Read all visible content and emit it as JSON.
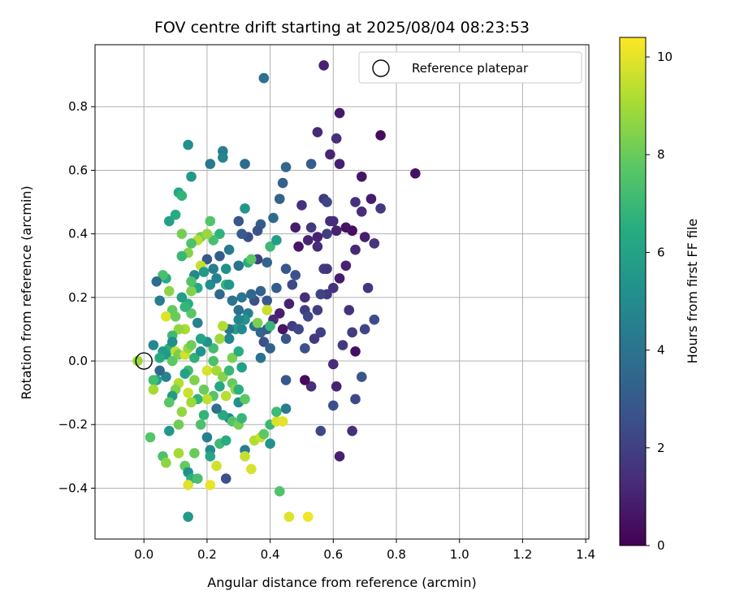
{
  "chart_data": {
    "type": "scatter",
    "title": "FOV centre drift starting at 2025/08/04 08:23:53",
    "xlabel": "Angular distance from reference (arcmin)",
    "ylabel": "Rotation from reference (arcmin)",
    "xlim": [
      -0.155,
      1.41
    ],
    "ylim": [
      -0.56,
      0.995
    ],
    "xticks": [
      "0.0",
      "0.2",
      "0.4",
      "0.6",
      "0.8",
      "1.0",
      "1.2",
      "1.4"
    ],
    "xtick_values": [
      0.0,
      0.2,
      0.4,
      0.6,
      0.8,
      1.0,
      1.2,
      1.4
    ],
    "yticks": [
      "−0.4",
      "−0.2",
      "0.0",
      "0.2",
      "0.4",
      "0.6",
      "0.8"
    ],
    "ytick_values": [
      -0.4,
      -0.2,
      0.0,
      0.2,
      0.4,
      0.6,
      0.8
    ],
    "grid": true,
    "legend": {
      "position": "upper-right",
      "entries": [
        "Reference platepar"
      ]
    },
    "reference_point": {
      "x": 0.0,
      "y": 0.0
    },
    "colorbar": {
      "label": "Hours from first FF file",
      "colormap": "viridis",
      "range": [
        0,
        10.4
      ],
      "ticks": [
        "0",
        "2",
        "4",
        "6",
        "8",
        "10"
      ],
      "tick_values": [
        0,
        2,
        4,
        6,
        8,
        10
      ]
    },
    "points": [
      [
        0.75,
        0.71,
        0.3
      ],
      [
        0.86,
        0.59,
        0.5
      ],
      [
        0.62,
        0.78,
        0.7
      ],
      [
        0.57,
        0.93,
        1.0
      ],
      [
        0.55,
        0.72,
        1.2
      ],
      [
        0.61,
        0.7,
        1.4
      ],
      [
        0.59,
        0.65,
        1.1
      ],
      [
        0.62,
        0.62,
        0.9
      ],
      [
        0.69,
        0.58,
        0.6
      ],
      [
        0.72,
        0.51,
        0.8
      ],
      [
        0.67,
        0.5,
        1.5
      ],
      [
        0.75,
        0.48,
        1.8
      ],
      [
        0.69,
        0.47,
        1.3
      ],
      [
        0.7,
        0.39,
        0.9
      ],
      [
        0.66,
        0.41,
        0.4
      ],
      [
        0.73,
        0.37,
        1.6
      ],
      [
        0.61,
        0.41,
        1.0
      ],
      [
        0.64,
        0.42,
        0.5
      ],
      [
        0.67,
        0.35,
        1.2
      ],
      [
        0.59,
        0.44,
        1.4
      ],
      [
        0.57,
        0.51,
        1.7
      ],
      [
        0.58,
        0.4,
        2.0
      ],
      [
        0.55,
        0.36,
        1.3
      ],
      [
        0.53,
        0.42,
        1.8
      ],
      [
        0.5,
        0.49,
        1.5
      ],
      [
        0.49,
        0.36,
        0.6
      ],
      [
        0.52,
        0.38,
        1.1
      ],
      [
        0.62,
        0.26,
        0.8
      ],
      [
        0.6,
        0.23,
        1.5
      ],
      [
        0.58,
        0.21,
        1.8
      ],
      [
        0.64,
        0.3,
        1.0
      ],
      [
        0.57,
        0.29,
        1.9
      ],
      [
        0.71,
        0.23,
        1.6
      ],
      [
        0.65,
        0.16,
        1.5
      ],
      [
        0.66,
        0.09,
        1.9
      ],
      [
        0.7,
        0.1,
        2.2
      ],
      [
        0.73,
        0.13,
        2.5
      ],
      [
        0.63,
        0.05,
        1.7
      ],
      [
        0.67,
        0.03,
        0.4
      ],
      [
        0.69,
        -0.05,
        2.8
      ],
      [
        0.6,
        -0.01,
        1.3
      ],
      [
        0.61,
        -0.08,
        1.0
      ],
      [
        0.67,
        -0.12,
        2.3
      ],
      [
        0.6,
        -0.14,
        2.5
      ],
      [
        0.66,
        -0.22,
        1.4
      ],
      [
        0.62,
        -0.3,
        0.9
      ],
      [
        0.56,
        -0.22,
        2.3
      ],
      [
        0.53,
        -0.08,
        1.4
      ],
      [
        0.51,
        -0.06,
        0.3
      ],
      [
        0.54,
        0.07,
        1.8
      ],
      [
        0.56,
        0.09,
        2.0
      ],
      [
        0.51,
        0.04,
        2.6
      ],
      [
        0.47,
        0.11,
        1.9
      ],
      [
        0.44,
        0.1,
        0.6
      ],
      [
        0.49,
        0.1,
        2.1
      ],
      [
        0.51,
        0.16,
        1.9
      ],
      [
        0.46,
        0.18,
        1.0
      ],
      [
        0.43,
        0.15,
        0.9
      ],
      [
        0.41,
        0.13,
        1.2
      ],
      [
        0.47,
        0.24,
        2.4
      ],
      [
        0.45,
        0.29,
        2.8
      ],
      [
        0.48,
        0.27,
        2.6
      ],
      [
        0.51,
        0.2,
        1.3
      ],
      [
        0.42,
        0.23,
        3.1
      ],
      [
        0.39,
        0.19,
        2.9
      ],
      [
        0.37,
        0.22,
        3.3
      ],
      [
        0.35,
        0.19,
        2.6
      ],
      [
        0.36,
        0.32,
        2.0
      ],
      [
        0.39,
        0.31,
        3.4
      ],
      [
        0.37,
        0.43,
        3.1
      ],
      [
        0.41,
        0.45,
        3.6
      ],
      [
        0.43,
        0.51,
        3.3
      ],
      [
        0.44,
        0.56,
        3.2
      ],
      [
        0.45,
        0.61,
        3.5
      ],
      [
        0.38,
        0.89,
        3.9
      ],
      [
        0.32,
        0.62,
        3.7
      ],
      [
        0.36,
        0.41,
        2.7
      ],
      [
        0.33,
        0.39,
        2.5
      ],
      [
        0.31,
        0.4,
        3.0
      ],
      [
        0.3,
        0.44,
        2.8
      ],
      [
        0.25,
        0.66,
        4.4
      ],
      [
        0.25,
        0.64,
        4.7
      ],
      [
        0.21,
        0.62,
        4.2
      ],
      [
        0.14,
        0.68,
        5.1
      ],
      [
        0.15,
        0.58,
        5.6
      ],
      [
        0.11,
        0.53,
        6.2
      ],
      [
        0.12,
        0.52,
        6.8
      ],
      [
        0.08,
        0.44,
        5.9
      ],
      [
        0.1,
        0.46,
        6.4
      ],
      [
        0.32,
        0.48,
        5.5
      ],
      [
        0.27,
        0.35,
        4.3
      ],
      [
        0.24,
        0.33,
        3.1
      ],
      [
        0.2,
        0.32,
        2.9
      ],
      [
        0.22,
        0.29,
        4.5
      ],
      [
        0.26,
        0.29,
        5.2
      ],
      [
        0.3,
        0.3,
        4.0
      ],
      [
        0.33,
        0.31,
        6.6
      ],
      [
        0.34,
        0.32,
        7.8
      ],
      [
        0.4,
        0.36,
        7.1
      ],
      [
        0.42,
        0.38,
        5.8
      ],
      [
        0.24,
        0.4,
        6.7
      ],
      [
        0.22,
        0.38,
        7.3
      ],
      [
        0.21,
        0.44,
        7.6
      ],
      [
        0.18,
        0.39,
        8.1
      ],
      [
        0.2,
        0.4,
        8.8
      ],
      [
        0.17,
        0.38,
        9.3
      ],
      [
        0.15,
        0.37,
        7.4
      ],
      [
        0.14,
        0.34,
        8.5
      ],
      [
        0.12,
        0.4,
        8.2
      ],
      [
        0.12,
        0.33,
        7.0
      ],
      [
        0.18,
        0.3,
        9.5
      ],
      [
        0.19,
        0.28,
        5.7
      ],
      [
        0.16,
        0.27,
        4.9
      ],
      [
        0.17,
        0.23,
        6.3
      ],
      [
        0.21,
        0.24,
        5.1
      ],
      [
        0.24,
        0.21,
        3.6
      ],
      [
        0.23,
        0.26,
        4.6
      ],
      [
        0.26,
        0.24,
        6.8
      ],
      [
        0.28,
        0.19,
        4.0
      ],
      [
        0.27,
        0.24,
        5.5
      ],
      [
        0.3,
        0.16,
        3.8
      ],
      [
        0.31,
        0.2,
        4.2
      ],
      [
        0.34,
        0.21,
        3.5
      ],
      [
        0.33,
        0.15,
        4.5
      ],
      [
        0.35,
        0.11,
        3.9
      ],
      [
        0.37,
        0.09,
        3.5
      ],
      [
        0.39,
        0.1,
        3.2
      ],
      [
        0.38,
        0.06,
        2.7
      ],
      [
        0.4,
        0.11,
        6.9
      ],
      [
        0.39,
        0.16,
        9.6
      ],
      [
        0.36,
        0.12,
        8.3
      ],
      [
        0.32,
        0.13,
        5.4
      ],
      [
        0.3,
        0.13,
        4.7
      ],
      [
        0.29,
        0.1,
        6.0
      ],
      [
        0.31,
        0.1,
        5.0
      ],
      [
        0.27,
        0.1,
        4.1
      ],
      [
        0.25,
        0.11,
        9.2
      ],
      [
        0.27,
        0.07,
        4.8
      ],
      [
        0.24,
        0.07,
        8.9
      ],
      [
        0.22,
        0.04,
        7.2
      ],
      [
        0.2,
        0.06,
        5.3
      ],
      [
        0.18,
        0.07,
        6.1
      ],
      [
        0.17,
        0.12,
        4.6
      ],
      [
        0.15,
        0.15,
        7.7
      ],
      [
        0.14,
        0.18,
        6.5
      ],
      [
        0.15,
        0.22,
        8.4
      ],
      [
        0.15,
        0.25,
        7.5
      ],
      [
        0.12,
        0.2,
        5.8
      ],
      [
        0.13,
        0.17,
        6.9
      ],
      [
        0.09,
        0.16,
        7.9
      ],
      [
        0.07,
        0.26,
        6.4
      ],
      [
        0.06,
        0.27,
        7.3
      ],
      [
        0.05,
        0.19,
        4.4
      ],
      [
        0.04,
        0.25,
        3.7
      ],
      [
        0.08,
        0.22,
        8.6
      ],
      [
        0.07,
        0.14,
        9.9
      ],
      [
        0.1,
        0.14,
        8.0
      ],
      [
        0.13,
        0.1,
        9.1
      ],
      [
        0.11,
        0.1,
        8.7
      ],
      [
        0.09,
        0.08,
        7.1
      ],
      [
        0.08,
        0.04,
        6.6
      ],
      [
        0.07,
        0.02,
        5.6
      ],
      [
        0.09,
        0.0,
        7.8
      ],
      [
        0.1,
        0.03,
        9.4
      ],
      [
        0.11,
        0.02,
        8.2
      ],
      [
        0.13,
        0.02,
        9.7
      ],
      [
        0.14,
        0.04,
        8.8
      ],
      [
        0.15,
        0.05,
        8.1
      ],
      [
        0.16,
        0.01,
        6.7
      ],
      [
        0.18,
        0.03,
        5.4
      ],
      [
        0.2,
        -0.03,
        9.8
      ],
      [
        0.22,
        0.0,
        7.4
      ],
      [
        0.23,
        -0.03,
        9.0
      ],
      [
        0.25,
        -0.05,
        8.5
      ],
      [
        0.24,
        -0.08,
        6.2
      ],
      [
        0.27,
        -0.03,
        7.0
      ],
      [
        0.28,
        0.01,
        8.3
      ],
      [
        0.3,
        0.03,
        6.5
      ],
      [
        0.31,
        -0.02,
        5.9
      ],
      [
        0.28,
        -0.07,
        7.9
      ],
      [
        0.26,
        -0.11,
        9.3
      ],
      [
        0.29,
        -0.09,
        8.6
      ],
      [
        0.3,
        -0.13,
        5.1
      ],
      [
        0.27,
        -0.18,
        4.9
      ],
      [
        0.25,
        -0.17,
        6.3
      ],
      [
        0.23,
        -0.15,
        3.9
      ],
      [
        0.22,
        -0.11,
        7.6
      ],
      [
        0.2,
        -0.12,
        9.4
      ],
      [
        0.19,
        -0.09,
        8.0
      ],
      [
        0.17,
        -0.12,
        6.8
      ],
      [
        0.15,
        -0.13,
        8.9
      ],
      [
        0.14,
        -0.1,
        9.6
      ],
      [
        0.16,
        -0.06,
        8.4
      ],
      [
        0.14,
        -0.03,
        7.1
      ],
      [
        0.13,
        -0.04,
        6.0
      ],
      [
        0.11,
        -0.07,
        9.2
      ],
      [
        0.1,
        -0.09,
        8.4
      ],
      [
        0.09,
        -0.11,
        5.7
      ],
      [
        0.08,
        -0.13,
        7.7
      ],
      [
        0.07,
        -0.05,
        4.7
      ],
      [
        0.05,
        -0.03,
        3.6
      ],
      [
        0.04,
        -0.06,
        6.0
      ],
      [
        0.03,
        -0.06,
        7.2
      ],
      [
        0.03,
        -0.09,
        9.0
      ],
      [
        0.02,
        -0.24,
        7.6
      ],
      [
        0.06,
        -0.3,
        7.4
      ],
      [
        0.07,
        -0.32,
        8.6
      ],
      [
        0.08,
        -0.22,
        5.5
      ],
      [
        0.11,
        -0.2,
        8.1
      ],
      [
        0.11,
        -0.29,
        9.0
      ],
      [
        0.13,
        -0.33,
        7.9
      ],
      [
        0.14,
        -0.35,
        5.2
      ],
      [
        0.15,
        -0.37,
        6.6
      ],
      [
        0.14,
        -0.39,
        9.9
      ],
      [
        0.14,
        -0.49,
        5.6
      ],
      [
        0.16,
        -0.29,
        8.0
      ],
      [
        0.17,
        -0.37,
        7.3
      ],
      [
        0.2,
        -0.24,
        4.5
      ],
      [
        0.21,
        -0.28,
        5.0
      ],
      [
        0.21,
        -0.3,
        6.2
      ],
      [
        0.21,
        -0.39,
        10.1
      ],
      [
        0.23,
        -0.33,
        9.7
      ],
      [
        0.24,
        -0.26,
        7.1
      ],
      [
        0.26,
        -0.25,
        6.4
      ],
      [
        0.26,
        -0.37,
        2.6
      ],
      [
        0.28,
        -0.19,
        7.5
      ],
      [
        0.3,
        -0.2,
        8.2
      ],
      [
        0.31,
        -0.18,
        6.9
      ],
      [
        0.32,
        -0.28,
        4.3
      ],
      [
        0.32,
        -0.3,
        9.5
      ],
      [
        0.34,
        -0.34,
        9.8
      ],
      [
        0.35,
        -0.25,
        9.2
      ],
      [
        0.37,
        -0.24,
        9.6
      ],
      [
        0.38,
        -0.23,
        7.8
      ],
      [
        0.4,
        -0.26,
        5.3
      ],
      [
        0.4,
        -0.2,
        7.0
      ],
      [
        0.42,
        -0.19,
        9.8
      ],
      [
        0.44,
        -0.19,
        10.0
      ],
      [
        0.43,
        -0.41,
        7.5
      ],
      [
        0.46,
        -0.49,
        9.9
      ],
      [
        0.52,
        -0.49,
        10.2
      ],
      [
        0.45,
        -0.15,
        4.3
      ],
      [
        0.42,
        -0.16,
        7.1
      ],
      [
        0.32,
        -0.12,
        7.8
      ],
      [
        0.3,
        -0.09,
        6.6
      ],
      [
        0.18,
        -0.2,
        7.4
      ],
      [
        0.19,
        -0.17,
        6.8
      ],
      [
        0.12,
        -0.16,
        8.7
      ],
      [
        0.06,
        0.03,
        5.7
      ],
      [
        0.03,
        0.05,
        4.9
      ],
      [
        -0.02,
        0.0,
        8.8
      ],
      [
        0.05,
        0.01,
        6.3
      ],
      [
        0.09,
        0.06,
        5.1
      ],
      [
        0.37,
        0.01,
        4.0
      ],
      [
        0.4,
        0.04,
        3.2
      ],
      [
        0.45,
        -0.06,
        2.9
      ],
      [
        0.45,
        0.07,
        2.7
      ],
      [
        0.49,
        0.1,
        2.2
      ],
      [
        0.52,
        0.14,
        2.3
      ],
      [
        0.55,
        0.16,
        1.9
      ],
      [
        0.56,
        0.21,
        2.1
      ],
      [
        0.58,
        0.29,
        1.6
      ],
      [
        0.53,
        0.62,
        3.0
      ],
      [
        0.58,
        0.5,
        2.2
      ],
      [
        0.6,
        0.44,
        1.3
      ],
      [
        0.55,
        0.39,
        1.0
      ],
      [
        0.48,
        0.42,
        0.8
      ]
    ]
  }
}
